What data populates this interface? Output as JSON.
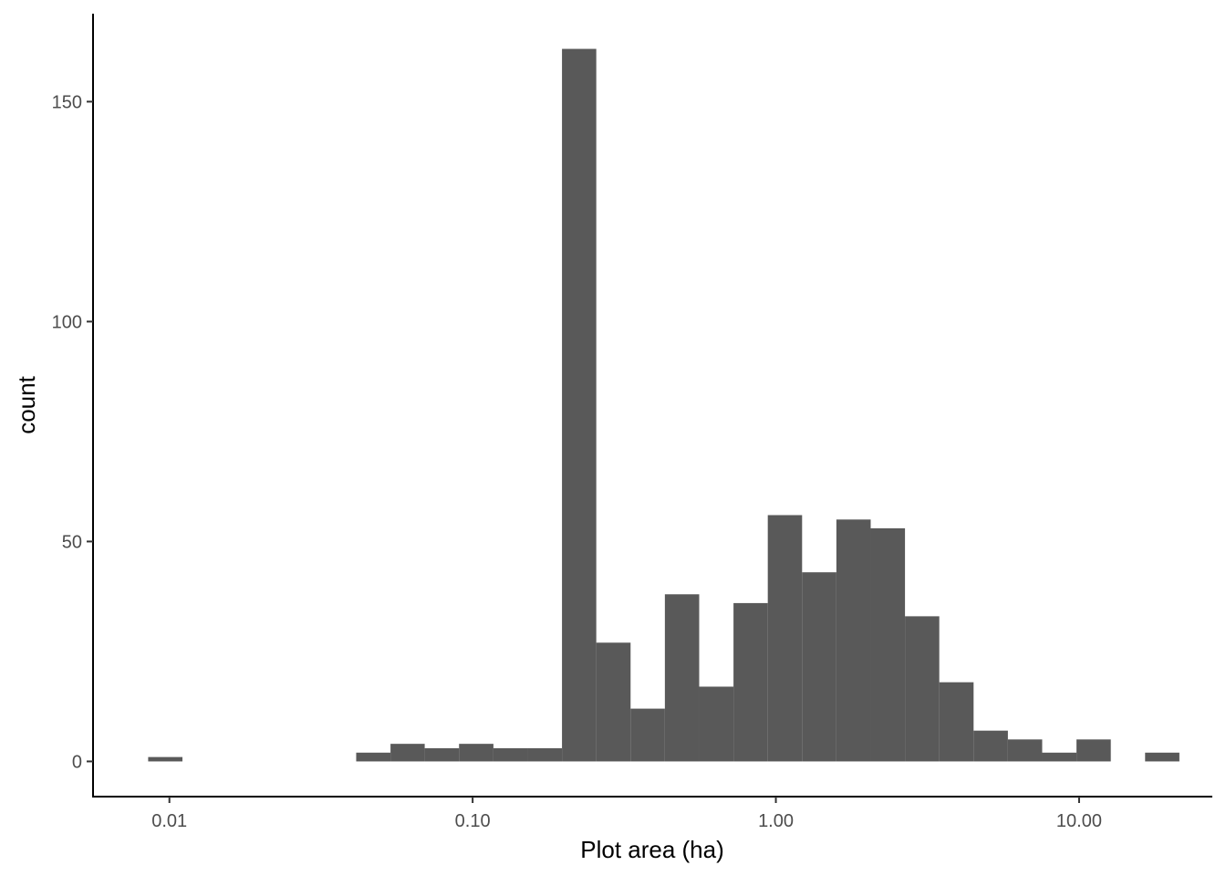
{
  "chart_data": {
    "type": "bar",
    "subtype": "histogram",
    "x_scale": "log10",
    "xlabel": "Plot area (ha)",
    "ylabel": "count",
    "x_ticks": [
      0.01,
      0.1,
      1,
      10
    ],
    "x_tick_labels": [
      "0.01",
      "0.10",
      "1.00",
      "10.00"
    ],
    "y_ticks": [
      0,
      50,
      100,
      150
    ],
    "y_tick_labels": [
      "0",
      "50",
      "100",
      "150"
    ],
    "xlim": [
      0.0056,
      27.5
    ],
    "ylim": [
      -8,
      170
    ],
    "grid": false,
    "legend": "none",
    "bar_color": "#595959",
    "bins": [
      {
        "x_from": 0.00851,
        "x_to": 0.01104,
        "count": 1
      },
      {
        "x_from": 0.0413,
        "x_to": 0.0536,
        "count": 2
      },
      {
        "x_from": 0.0536,
        "x_to": 0.0695,
        "count": 4
      },
      {
        "x_from": 0.0695,
        "x_to": 0.0902,
        "count": 3
      },
      {
        "x_from": 0.0902,
        "x_to": 0.1171,
        "count": 4
      },
      {
        "x_from": 0.1171,
        "x_to": 0.1519,
        "count": 3
      },
      {
        "x_from": 0.1519,
        "x_to": 0.1971,
        "count": 3
      },
      {
        "x_from": 0.1971,
        "x_to": 0.2557,
        "count": 162
      },
      {
        "x_from": 0.2557,
        "x_to": 0.3318,
        "count": 27
      },
      {
        "x_from": 0.3318,
        "x_to": 0.4305,
        "count": 12
      },
      {
        "x_from": 0.4305,
        "x_to": 0.5586,
        "count": 38
      },
      {
        "x_from": 0.5586,
        "x_to": 0.7249,
        "count": 17
      },
      {
        "x_from": 0.7249,
        "x_to": 0.9405,
        "count": 36
      },
      {
        "x_from": 0.9405,
        "x_to": 1.2203,
        "count": 56
      },
      {
        "x_from": 1.2203,
        "x_to": 1.5834,
        "count": 43
      },
      {
        "x_from": 1.5834,
        "x_to": 2.0545,
        "count": 55
      },
      {
        "x_from": 2.0545,
        "x_to": 2.6657,
        "count": 53
      },
      {
        "x_from": 2.6657,
        "x_to": 3.4588,
        "count": 33
      },
      {
        "x_from": 3.4588,
        "x_to": 4.4879,
        "count": 18
      },
      {
        "x_from": 4.4879,
        "x_to": 5.8232,
        "count": 7
      },
      {
        "x_from": 5.8232,
        "x_to": 7.5557,
        "count": 5
      },
      {
        "x_from": 7.5557,
        "x_to": 9.8037,
        "count": 2
      },
      {
        "x_from": 9.8037,
        "x_to": 12.7206,
        "count": 5
      },
      {
        "x_from": 16.505,
        "x_to": 21.416,
        "count": 2
      }
    ]
  }
}
